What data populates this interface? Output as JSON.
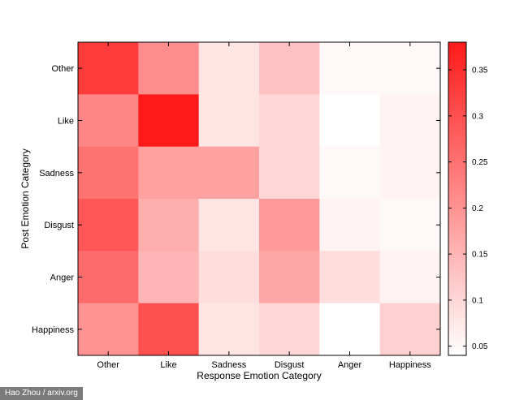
{
  "chart_data": {
    "type": "heatmap",
    "title": "",
    "xlabel": "Response Emotion Category",
    "ylabel": "Post Emotion Category",
    "x_categories": [
      "Other",
      "Like",
      "Sadness",
      "Disgust",
      "Anger",
      "Happiness"
    ],
    "y_categories": [
      "Other",
      "Like",
      "Sadness",
      "Disgust",
      "Anger",
      "Happiness"
    ],
    "values": [
      [
        0.33,
        0.21,
        0.08,
        0.13,
        0.05,
        0.05
      ],
      [
        0.22,
        0.38,
        0.08,
        0.1,
        0.04,
        0.06
      ],
      [
        0.25,
        0.18,
        0.18,
        0.1,
        0.05,
        0.06
      ],
      [
        0.29,
        0.16,
        0.08,
        0.19,
        0.06,
        0.05
      ],
      [
        0.26,
        0.15,
        0.09,
        0.17,
        0.09,
        0.06
      ],
      [
        0.2,
        0.3,
        0.08,
        0.1,
        0.04,
        0.11
      ]
    ],
    "colorbar": {
      "range": [
        0.04,
        0.38
      ],
      "ticks": [
        0.05,
        0.1,
        0.15,
        0.2,
        0.25,
        0.3,
        0.35
      ],
      "tick_labels": [
        "0.05",
        "0.1",
        "0.15",
        "0.2",
        "0.25",
        "0.3",
        "0.35"
      ],
      "color_low": "#ffffff",
      "color_high": "#ff1a1a"
    },
    "grid": false
  },
  "credit": "Hao Zhou / arxiv.org"
}
